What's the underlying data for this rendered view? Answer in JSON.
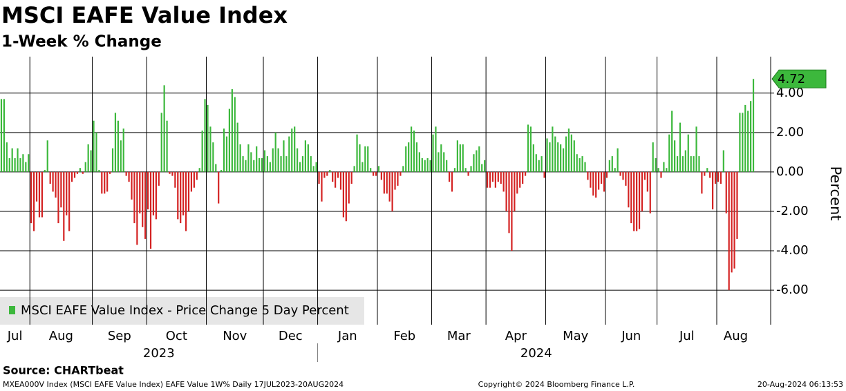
{
  "chart_data": {
    "type": "bar",
    "title": "MSCI EAFE Value Index",
    "subtitle": "1-Week % Change",
    "y_label": "Percent",
    "legend": "MSCI EAFE Value Index - Price Change 5 Day Percent",
    "positive_color": "#3cb83c",
    "negative_color": "#d42222",
    "ylim": [
      -7.75,
      5.85
    ],
    "yticks": [
      {
        "value": -6,
        "label": "-6.00"
      },
      {
        "value": -4,
        "label": "-4.00"
      },
      {
        "value": -2,
        "label": "-2.00"
      },
      {
        "value": 0,
        "label": "0.00"
      },
      {
        "value": 2,
        "label": "2.00"
      },
      {
        "value": 4,
        "label": "4.00"
      }
    ],
    "grid": true,
    "groups": [
      {
        "label": "2023",
        "categories": [
          "Jul",
          null,
          null,
          null,
          null,
          null,
          null,
          null,
          null,
          null,
          null,
          "Aug",
          null,
          null,
          null,
          null,
          null,
          null,
          null,
          null,
          null,
          null,
          null,
          null,
          null,
          null,
          null,
          null,
          null,
          null,
          null,
          null,
          null,
          null,
          "Sep",
          null,
          null,
          null,
          null,
          null,
          null,
          null,
          null,
          null,
          null,
          null,
          null,
          null,
          null,
          null,
          null,
          null,
          null,
          null,
          "Oct",
          null,
          null,
          null,
          null,
          null,
          null,
          null,
          null,
          null,
          null,
          null,
          null,
          null,
          null,
          null,
          null,
          null,
          null,
          null,
          null,
          null,
          "Nov",
          null,
          null,
          null,
          null,
          null,
          null,
          null,
          null,
          null,
          null,
          null,
          null,
          null,
          null,
          null,
          null,
          null,
          null,
          null,
          null,
          "Dec",
          null,
          null,
          null,
          null,
          null,
          null,
          null,
          null,
          null,
          null,
          null,
          null,
          null,
          null,
          null,
          null,
          null,
          null,
          null
        ],
        "values": [
          3.7,
          3.7,
          1.5,
          0.7,
          1.2,
          0.7,
          1.2,
          0.7,
          0.9,
          0.5,
          0.9,
          -2.6,
          -3.0,
          -1.5,
          -2.3,
          -2.3,
          0.1,
          1.6,
          -0.6,
          -1.0,
          -1.3,
          -2.6,
          -1.8,
          -3.5,
          -2.2,
          -3.0,
          -0.5,
          -0.3,
          -0.1,
          0.2,
          -0.1,
          0.5,
          1.4,
          1.1,
          2.6,
          2.0,
          0.1,
          -1.1,
          -1.1,
          -1.0,
          -0.1,
          1.2,
          3.0,
          2.6,
          1.6,
          2.2,
          -0.2,
          -0.5,
          -1.4,
          -2.6,
          -3.7,
          -2.1,
          -2.8,
          -3.4,
          -1.9,
          -3.9,
          -2.2,
          -2.4,
          -0.7,
          3.0,
          4.4,
          2.6,
          -0.1,
          -0.2,
          -0.8,
          -2.4,
          -2.6,
          -2.2,
          -3.0,
          -2.0,
          -1.0,
          -0.8,
          -0.4,
          0.2,
          2.1,
          3.7,
          3.4,
          2.3,
          1.5,
          0.4,
          -1.6,
          0.1,
          2.2,
          1.8,
          3.2,
          4.2,
          3.8,
          2.5,
          1.4,
          0.8,
          0.6,
          1.4,
          1.0,
          0.6,
          1.3,
          0.7,
          0.7,
          1.1,
          0.8,
          0.5,
          1.2,
          2.0,
          1.2,
          0.8,
          1.6,
          0.8,
          1.8,
          2.2,
          2.3,
          1.2,
          0.5,
          0.8,
          1.6,
          1.4,
          0.8,
          0.3,
          0.5
        ]
      },
      {
        "label": "2024",
        "categories": [
          "Jan",
          null,
          null,
          null,
          null,
          null,
          null,
          null,
          null,
          null,
          null,
          null,
          null,
          null,
          null,
          null,
          null,
          null,
          null,
          null,
          null,
          null,
          "Feb",
          null,
          null,
          null,
          null,
          null,
          null,
          null,
          null,
          null,
          null,
          null,
          null,
          null,
          null,
          null,
          null,
          null,
          null,
          null,
          "Mar",
          null,
          null,
          null,
          null,
          null,
          null,
          null,
          null,
          null,
          null,
          null,
          null,
          null,
          null,
          null,
          null,
          null,
          null,
          null,
          "Apr",
          null,
          null,
          null,
          null,
          null,
          null,
          null,
          null,
          null,
          null,
          null,
          null,
          null,
          null,
          null,
          null,
          null,
          null,
          null,
          null,
          null,
          "May",
          null,
          null,
          null,
          null,
          null,
          null,
          null,
          null,
          null,
          null,
          null,
          null,
          null,
          null,
          null,
          null,
          null,
          null,
          null,
          null,
          null,
          "Jun",
          null,
          null,
          null,
          null,
          null,
          null,
          null,
          null,
          null,
          null,
          null,
          null,
          null,
          null,
          null,
          null,
          null,
          null,
          "Jul",
          null,
          null,
          null,
          null,
          null,
          null,
          null,
          null,
          null,
          null,
          null,
          null,
          null,
          null,
          null,
          null,
          null,
          null,
          null,
          null,
          null,
          "Aug",
          null,
          null,
          null,
          null,
          null,
          null,
          null,
          null,
          null,
          null,
          null,
          null,
          null
        ],
        "values": [
          -0.6,
          -1.5,
          -0.3,
          -0.2,
          0.1,
          -0.5,
          -0.8,
          -0.3,
          -0.9,
          -2.3,
          -2.5,
          -1.6,
          -0.6,
          0.3,
          1.9,
          1.4,
          0.5,
          1.3,
          1.3,
          0.2,
          -0.2,
          -0.2,
          0.3,
          -0.4,
          -1.1,
          -1.1,
          -1.5,
          -2.0,
          -0.9,
          -0.7,
          -0.2,
          0.3,
          1.3,
          1.5,
          2.3,
          2.1,
          1.5,
          1.0,
          0.7,
          0.6,
          0.7,
          0.6,
          1.9,
          2.3,
          1.0,
          1.4,
          1.0,
          0.6,
          -0.5,
          -1.0,
          0.2,
          1.6,
          1.4,
          1.4,
          0.2,
          -0.2,
          0.3,
          0.9,
          1.1,
          1.3,
          0.4,
          0.6,
          -0.8,
          -0.8,
          -0.5,
          -0.8,
          -0.5,
          -0.6,
          -1.0,
          -2.0,
          -3.1,
          -4.0,
          -2.0,
          -1.1,
          -0.8,
          -0.6,
          -0.2,
          2.4,
          2.3,
          1.4,
          0.9,
          0.6,
          0.8,
          -0.3,
          1.7,
          1.5,
          2.3,
          1.8,
          1.5,
          1.4,
          1.2,
          1.8,
          2.2,
          1.9,
          1.6,
          0.9,
          0.7,
          0.8,
          0.5,
          -0.4,
          -0.8,
          -1.2,
          -1.3,
          -0.9,
          -0.6,
          -1.0,
          -0.3,
          0.6,
          0.8,
          0.2,
          1.2,
          -0.2,
          -0.4,
          -0.7,
          -1.8,
          -2.6,
          -3.0,
          -3.0,
          -2.9,
          -2.0,
          -0.4,
          -1.0,
          -2.1,
          1.5,
          0.7,
          0.2,
          -0.3,
          0.5,
          0.2,
          1.9,
          3.1,
          1.6,
          0.8,
          2.5,
          0.8,
          1.1,
          1.9,
          0.8,
          0.8,
          2.3,
          0.8,
          -1.1,
          -0.2,
          0.2,
          -0.3,
          -1.9,
          -0.6,
          -0.5,
          -0.6,
          1.1,
          -2.1,
          -6.0,
          -5.1,
          -4.9,
          -3.4,
          3.0,
          3.0,
          3.4,
          3.1,
          3.6,
          4.72
        ]
      }
    ],
    "source": "Source: CHARTbeat",
    "footer_left": "MXEA000V Index (MSCI EAFE Value Index) EAFE Value 1W%  Daily 17JUL2023-20AUG2024",
    "footer_center": "Copyright© 2024 Bloomberg Finance L.P.",
    "footer_right": "20-Aug-2024 06:13:53"
  }
}
